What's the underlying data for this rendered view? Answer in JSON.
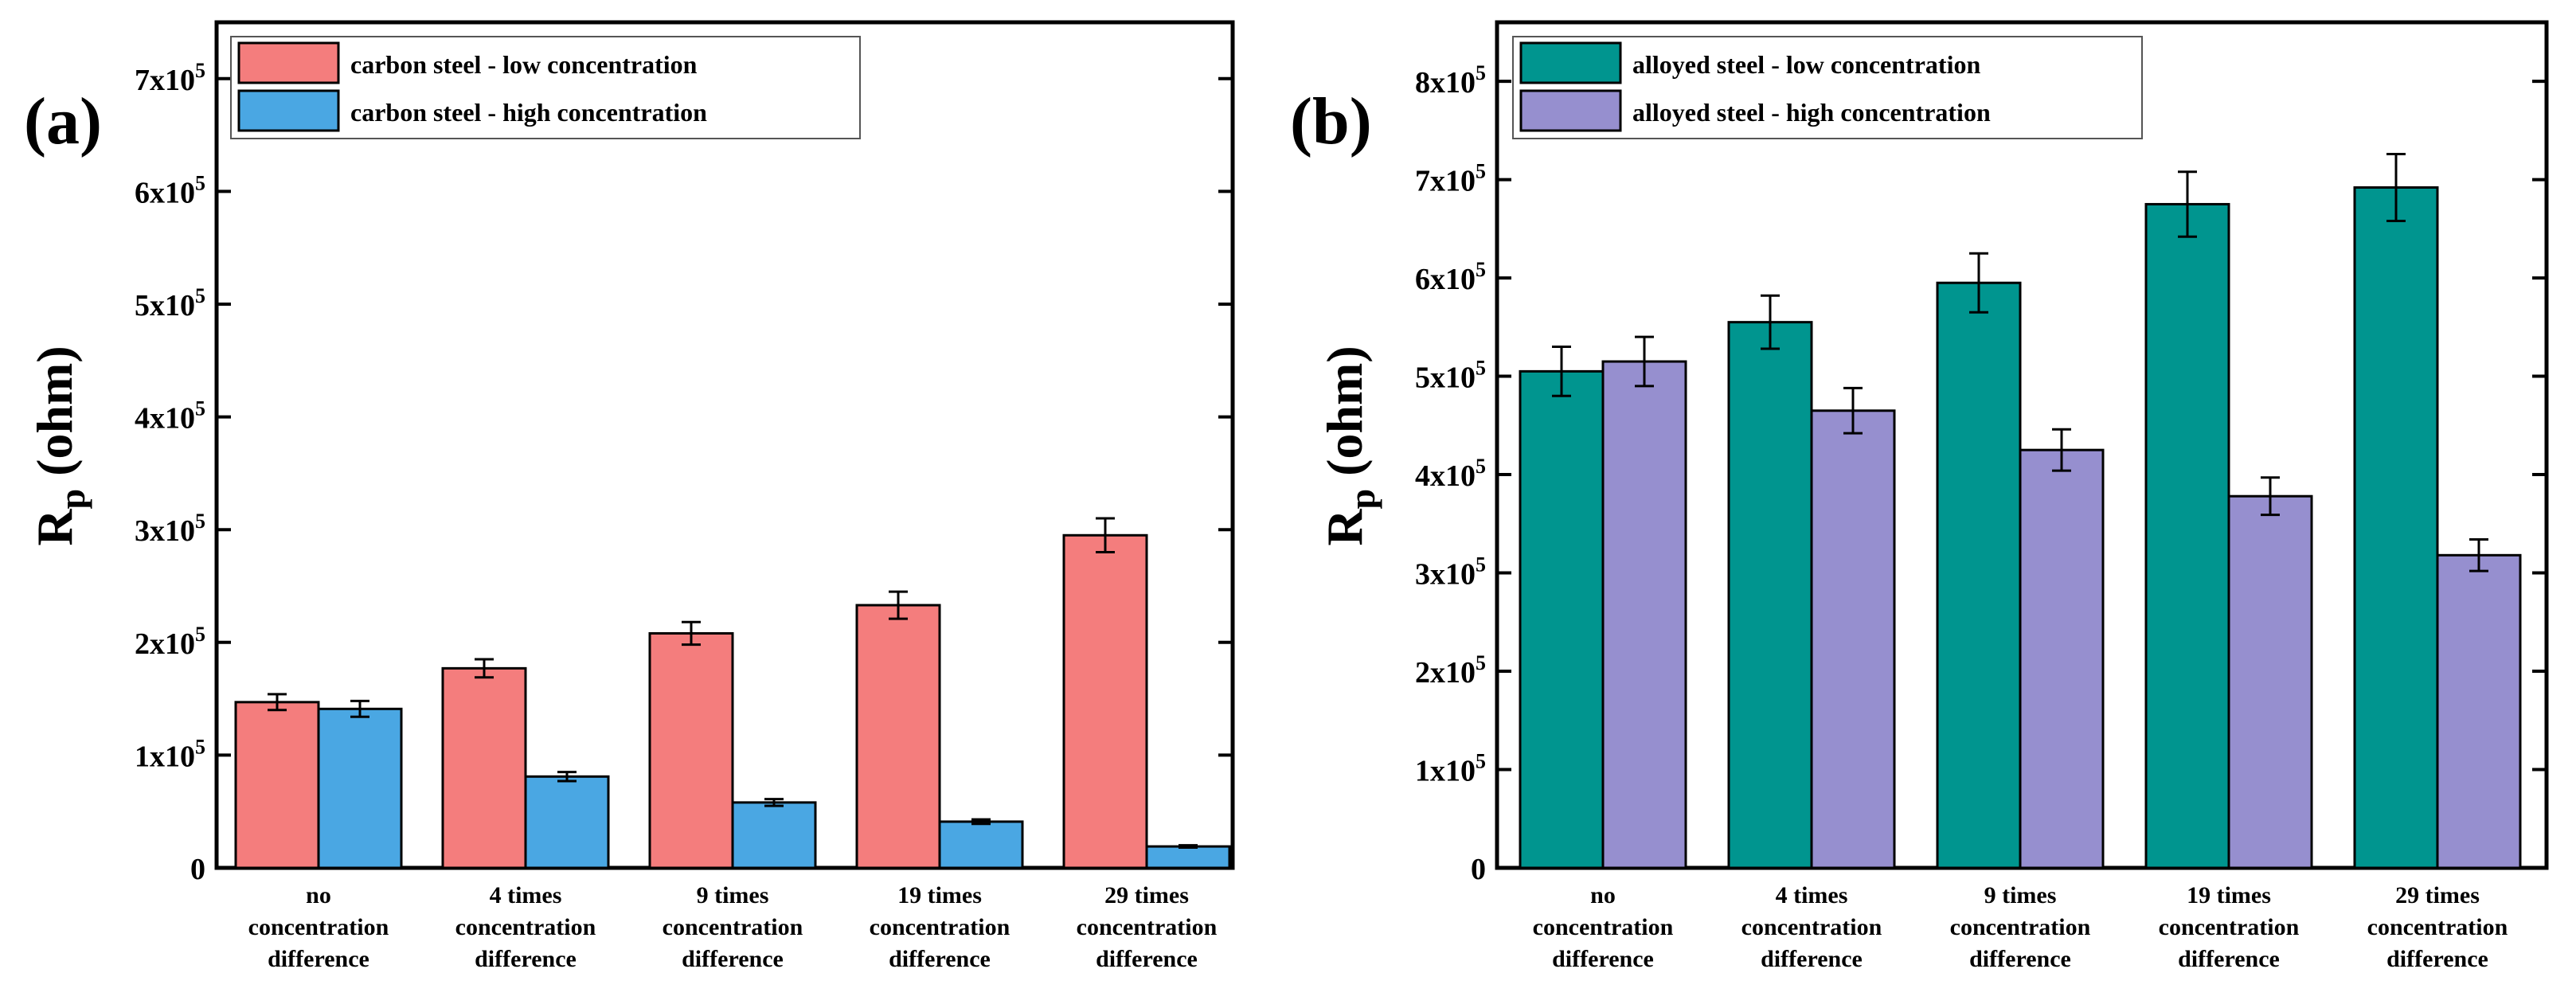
{
  "figure": {
    "ylabel_main": "R",
    "ylabel_sub": "p",
    "ylabel_unit": " (ohm)"
  },
  "chart_data": [
    {
      "type": "bar",
      "panel_label": "(a)",
      "title": "",
      "xlabel": "",
      "ylabel": "Rp (ohm)",
      "ylim": [
        0,
        750000
      ],
      "yticks": [
        0,
        100000,
        200000,
        300000,
        400000,
        500000,
        600000,
        700000
      ],
      "ytick_labels": [
        "0",
        "1x10^5",
        "2x10^5",
        "3x10^5",
        "4x10^5",
        "5x10^5",
        "6x10^5",
        "7x10^5"
      ],
      "categories": [
        [
          "no",
          "concentration",
          "difference"
        ],
        [
          "4 times",
          "concentration",
          "difference"
        ],
        [
          "9 times",
          "concentration",
          "difference"
        ],
        [
          "19 times",
          "concentration",
          "difference"
        ],
        [
          "29 times",
          "concentration",
          "difference"
        ]
      ],
      "legend_position": "top-left",
      "series": [
        {
          "name": "carbon steel - low concentration",
          "color": "#f47d7d",
          "values": [
            147000,
            177000,
            208000,
            233000,
            295000
          ],
          "errors": [
            7000,
            8000,
            10000,
            12000,
            15000
          ]
        },
        {
          "name": "carbon steel - high concentration",
          "color": "#4aa7e3",
          "values": [
            141000,
            81000,
            58000,
            41000,
            19000
          ],
          "errors": [
            7000,
            4000,
            3000,
            2000,
            1000
          ]
        }
      ]
    },
    {
      "type": "bar",
      "panel_label": "(b)",
      "title": "",
      "xlabel": "",
      "ylabel": "Rp (ohm)",
      "ylim": [
        0,
        860000
      ],
      "yticks": [
        0,
        100000,
        200000,
        300000,
        400000,
        500000,
        600000,
        700000,
        800000
      ],
      "ytick_labels": [
        "0",
        "1x10^5",
        "2x10^5",
        "3x10^5",
        "4x10^5",
        "5x10^5",
        "6x10^5",
        "7x10^5",
        "8x10^5"
      ],
      "categories": [
        [
          "no",
          "concentration",
          "difference"
        ],
        [
          "4 times",
          "concentration",
          "difference"
        ],
        [
          "9 times",
          "concentration",
          "difference"
        ],
        [
          "19 times",
          "concentration",
          "difference"
        ],
        [
          "29 times",
          "concentration",
          "difference"
        ]
      ],
      "legend_position": "top-left",
      "series": [
        {
          "name": "alloyed steel - low concentration",
          "color": "#00958f",
          "values": [
            505000,
            555000,
            595000,
            675000,
            692000
          ],
          "errors": [
            25000,
            27000,
            30000,
            33000,
            34000
          ]
        },
        {
          "name": "alloyed steel - high concentration",
          "color": "#968fcf",
          "values": [
            515000,
            465000,
            425000,
            378000,
            318000
          ],
          "errors": [
            25000,
            23000,
            21000,
            19000,
            16000
          ]
        }
      ]
    }
  ]
}
